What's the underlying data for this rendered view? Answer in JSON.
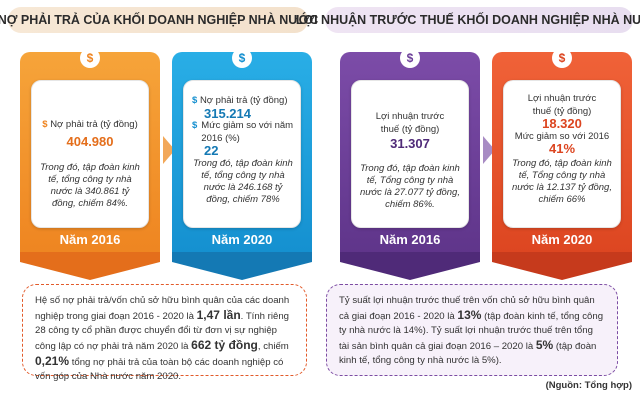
{
  "titles": {
    "left": "NỢ PHẢI TRẢ CỦA KHỐI DOANH NGHIỆP NHÀ NƯỚC",
    "right": "LỢI NHUẬN TRƯỚC THUẾ KHỐI DOANH NGHIỆP NHÀ NƯỚC"
  },
  "colors": {
    "orange": "#f39325",
    "orange_dark": "#e46e1b",
    "blue": "#1a9bd7",
    "blue_dark": "#1479b4",
    "purple": "#6b3d98",
    "purple_dark": "#4f2a78",
    "red": "#e8502a",
    "red_dark": "#c63a1c"
  },
  "cards": {
    "debt_2016": {
      "label": "Nợ phải trả (tỷ đồng)",
      "value": "404.980",
      "note": "Trong đó, tập đoàn kinh tế, tổng công ty nhà nước là 340.861 tỷ đồng, chiếm 84%.",
      "year": "Năm 2016"
    },
    "debt_2020": {
      "label": "Nợ phải trả (tỷ đồng)",
      "value": "315.214",
      "label2": "Mức giảm so với năm 2016 (%)",
      "value2": "22",
      "note": "Trong đó, tập đoàn kinh tế, tổng công ty nhà nước là 246.168 tỷ đồng, chiếm 78%",
      "year": "Năm 2020"
    },
    "profit_2016": {
      "label": "Lợi nhuận trước thuế (tỷ đồng)",
      "value": "31.307",
      "note": "Trong đó, tập đoàn kinh tế, Tổng công ty nhà nước là 27.077 tỷ đồng, chiếm 86%.",
      "year": "Năm 2016"
    },
    "profit_2020": {
      "label": "Lợi nhuận trước thuế (tỷ đồng)",
      "value": "18.320",
      "label2": "Mức giảm so với 2016",
      "value2": "41%",
      "note": "Trong đó, tập đoàn kinh tế, Tổng công ty nhà nước là 12.137 tỷ đồng, chiếm 66%",
      "year": "Năm 2020"
    }
  },
  "notes": {
    "left": {
      "p1": "Hệ số nợ phải trả/vốn chủ sở hữu bình quân của các doanh nghiệp trong giai đoạn 2016 - 2020 là ",
      "b1": "1,47 lần",
      "p2": ". Tính riêng 28 công ty cổ phần được chuyển đổi từ đơn vị sự nghiệp công lập có nợ phải trả năm 2020 là ",
      "b2": "662 tỷ đồng",
      "p3": ", chiếm ",
      "b3": "0,21%",
      "p4": " tổng nợ phải trả của toàn bộ các doanh nghiệp có vốn góp của Nhà nước năm 2020."
    },
    "right": {
      "p1": "Tỷ suất lợi nhuận trước thuế trên vốn chủ sở hữu bình quân cả giai đoạn 2016 - 2020 là ",
      "b1": "13%",
      "p2": " (tập đoàn kinh tế, tổng công ty nhà nước là 14%). Tỷ suất lợi nhuận trước thuế trên tổng tài sản bình quân cả giai đoạn 2016 – 2020 là ",
      "b2": "5%",
      "p3": " (tập đoàn kinh tế, tổng công ty nhà nước là 5%)."
    }
  },
  "source": "(Nguồn: Tổng hợp)",
  "icons": {
    "coin": "dollar-coin-icon",
    "bullet": "dollar-bullet-icon",
    "arrow": "right-arrow-icon"
  },
  "coin_symbol": "$"
}
